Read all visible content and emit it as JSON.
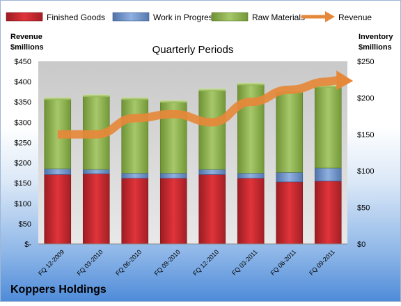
{
  "company": "Koppers Holdings",
  "chart_data": {
    "type": "bar",
    "title": "Quarterly Periods",
    "stacked": true,
    "categories": [
      "FQ 12-2009",
      "FQ 03-2010",
      "FQ 06-2010",
      "FQ 09-2010",
      "FQ 12-2010",
      "FQ 03-2011",
      "FQ 06-2011",
      "FQ 09-2011"
    ],
    "left_axis": {
      "label_line1": "Revenue",
      "label_line2": "$millions",
      "range": [
        0,
        450
      ],
      "ticks": [
        "$-",
        "$50",
        "$100",
        "$150",
        "$200",
        "$250",
        "$300",
        "$350",
        "$400",
        "$450"
      ]
    },
    "right_axis": {
      "label_line1": "Inventory",
      "label_line2": "$millions",
      "range": [
        0,
        250
      ],
      "ticks": [
        "$0",
        "$50",
        "$100",
        "$150",
        "$200",
        "$250"
      ]
    },
    "series": [
      {
        "name": "Finished Goods",
        "axis": "right",
        "color": "#c0282e",
        "values": [
          95,
          96,
          90,
          90,
          95,
          90,
          85,
          86
        ]
      },
      {
        "name": "Work in Progress",
        "axis": "right",
        "color": "#6b8ec6",
        "values": [
          8,
          6,
          7,
          7,
          7,
          7,
          13,
          18
        ]
      },
      {
        "name": "Raw Materials",
        "axis": "right",
        "color": "#8cb04a",
        "values": [
          95,
          100,
          101,
          97,
          108,
          121,
          110,
          111
        ]
      },
      {
        "name": "Revenue",
        "type": "line",
        "axis": "left",
        "color": "#e6883a",
        "values": [
          270,
          270,
          310,
          320,
          300,
          350,
          380,
          400
        ]
      }
    ],
    "legend_position": "top",
    "grid": false
  }
}
